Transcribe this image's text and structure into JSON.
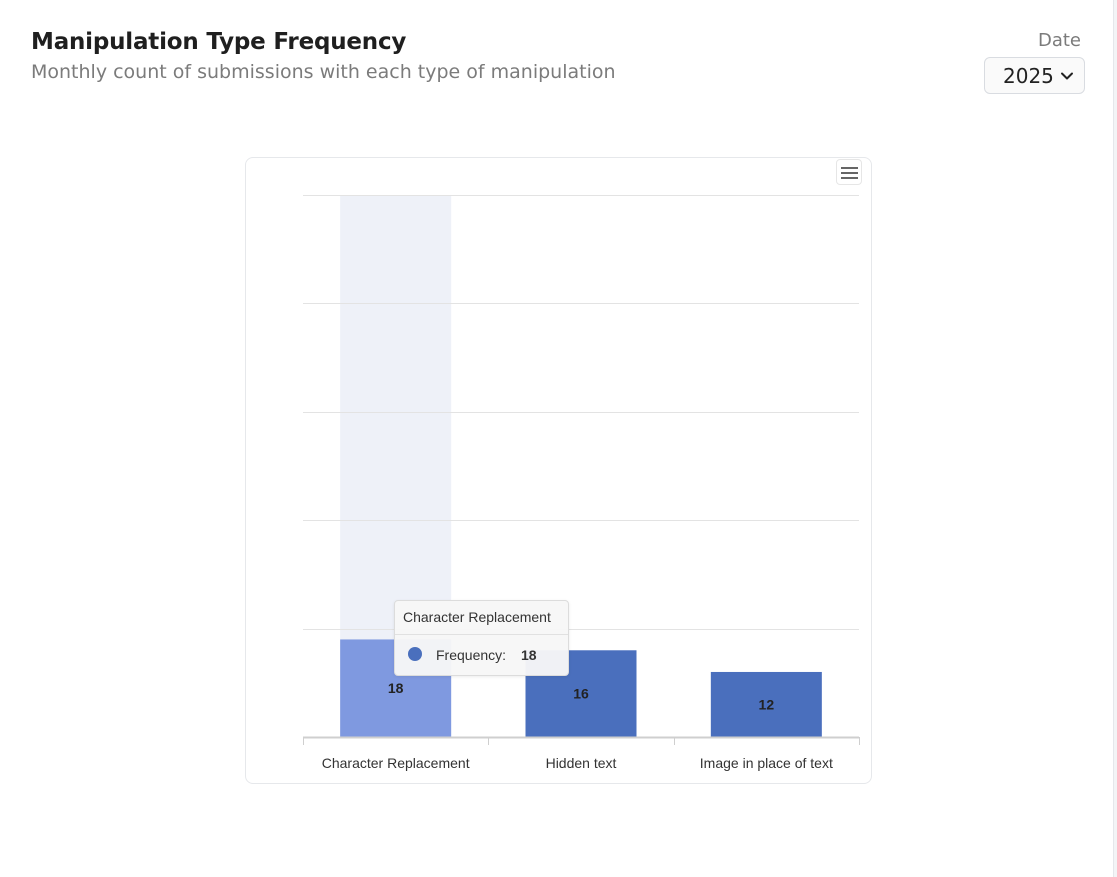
{
  "header": {
    "title": "Manipulation Type Frequency",
    "subtitle": "Monthly count of submissions with each type of manipulation"
  },
  "date_filter": {
    "label": "Date",
    "selected": "2025"
  },
  "tooltip": {
    "category": "Character Replacement",
    "series": "Frequency:",
    "value": "18"
  },
  "colors": {
    "bar": "#4a6fbd",
    "bar_hover": "#7f99e0",
    "hover_band": "#eef1f8",
    "grid": "#e3e3e3",
    "axis": "#cfcfcf"
  },
  "chart_data": {
    "type": "bar",
    "categories": [
      "Character Replacement",
      "Hidden text",
      "Image in place of text"
    ],
    "series": [
      {
        "values": [
          18,
          16,
          12
        ]
      }
    ],
    "data_labels": [
      "18",
      "16",
      "12"
    ],
    "ylim": [
      0,
      100
    ],
    "grid": true,
    "y_tick_labels_shown": false,
    "hovered_category_index": 0
  }
}
